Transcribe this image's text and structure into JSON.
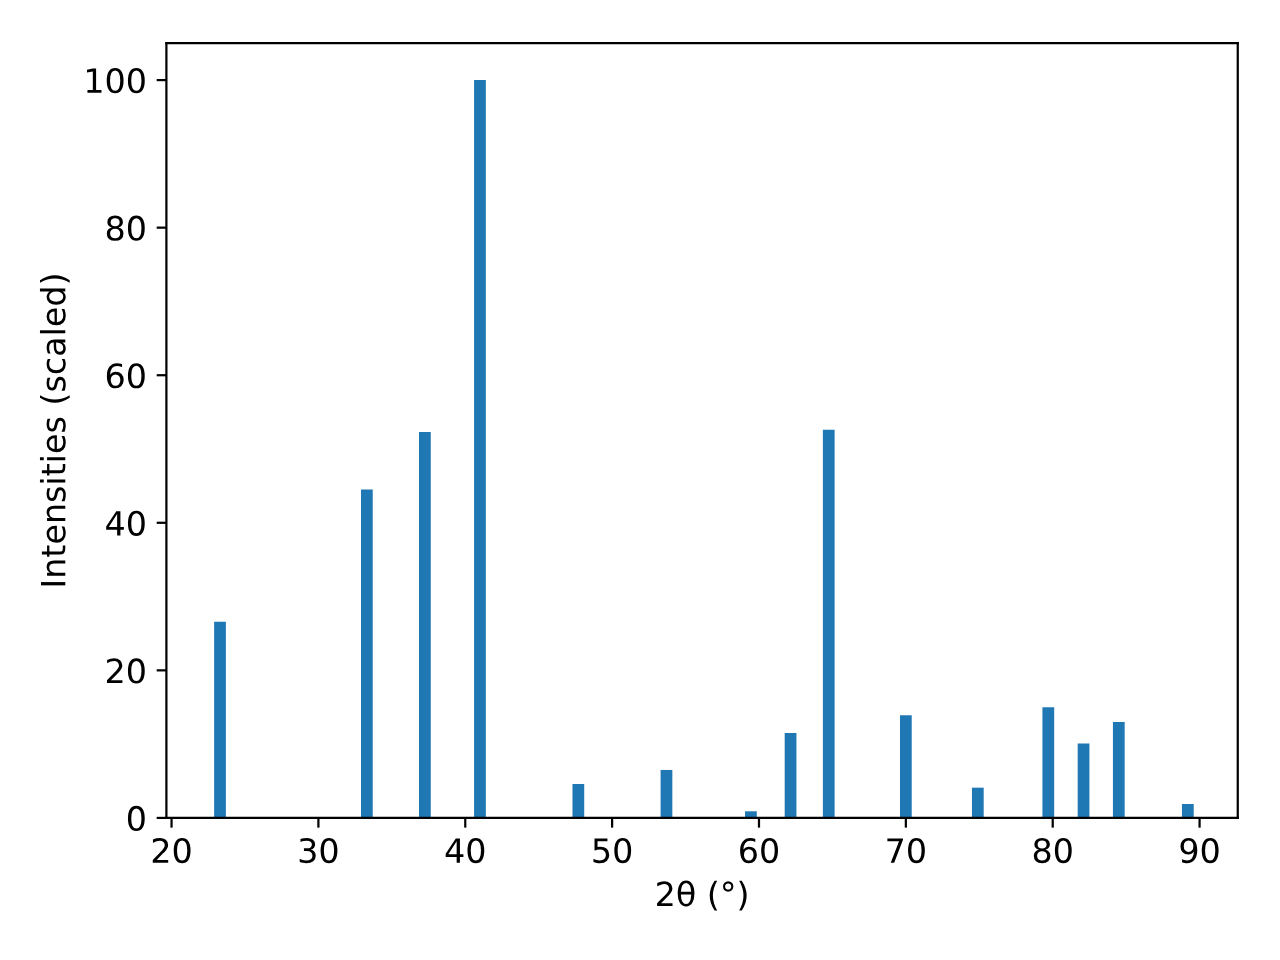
{
  "chart_data": {
    "type": "bar",
    "xlabel": "2θ (°)",
    "ylabel": "Intensities (scaled)",
    "x": [
      23.3,
      33.3,
      37.25,
      41.0,
      47.7,
      53.7,
      59.45,
      62.15,
      64.75,
      70.0,
      74.9,
      79.7,
      82.1,
      84.5,
      89.2
    ],
    "series": [
      {
        "color": "#1f77b4",
        "values": [
          26.6,
          44.5,
          52.3,
          100,
          4.6,
          6.5,
          0.9,
          11.5,
          52.6,
          13.9,
          4.1,
          15.0,
          10.1,
          13.0,
          1.9
        ]
      }
    ],
    "xlim": [
      19.65,
      92.6
    ],
    "ylim": [
      0,
      105
    ],
    "xticks": [
      20,
      30,
      40,
      50,
      60,
      70,
      80,
      90
    ],
    "yticks": [
      0,
      20,
      40,
      60,
      80,
      100
    ],
    "grid": false
  }
}
